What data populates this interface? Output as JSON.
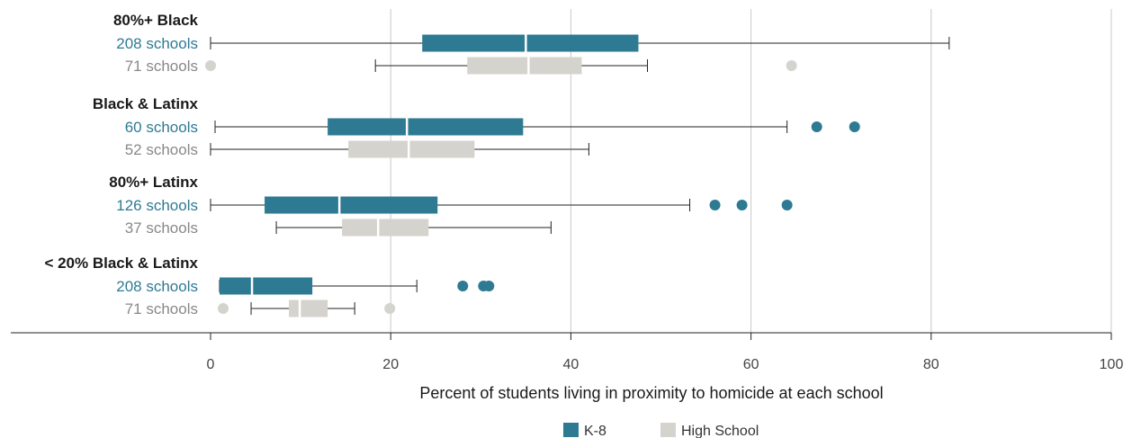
{
  "chart_data": {
    "type": "boxplot",
    "orientation": "horizontal",
    "xlabel": "Percent of students living in proximity to homicide at each school",
    "xlim": [
      0,
      100
    ],
    "xticks": [
      0,
      20,
      40,
      60,
      80,
      100
    ],
    "grid": true,
    "legend": {
      "placement": "bottom-center",
      "items": [
        {
          "name": "K-8",
          "color": "#2e7a93"
        },
        {
          "name": "High School",
          "color": "#d4d3cd"
        }
      ]
    },
    "colors": {
      "k8": "#2e7a93",
      "hs": "#d4d3cd",
      "hs_text": "#888888",
      "whisker": "#222222"
    },
    "groups": [
      {
        "title": "80%+ Black",
        "rows": [
          {
            "series": "K-8",
            "label": "208 schools",
            "min": 0,
            "q1": 23.5,
            "median": 35,
            "q3": 47.5,
            "max": 82,
            "outliers": []
          },
          {
            "series": "High School",
            "label": "71 schools",
            "min": 18.3,
            "q1": 28.5,
            "median": 35.3,
            "q3": 41.2,
            "max": 48.5,
            "outliers": [
              0,
              64.5
            ]
          }
        ]
      },
      {
        "title": "Black & Latinx",
        "rows": [
          {
            "series": "K-8",
            "label": "60 schools",
            "min": 0.5,
            "q1": 13,
            "median": 21.8,
            "q3": 34.7,
            "max": 64,
            "outliers": [
              67.3,
              71.5
            ]
          },
          {
            "series": "High School",
            "label": "52 schools",
            "min": 0,
            "q1": 15.3,
            "median": 22,
            "q3": 29.3,
            "max": 42,
            "outliers": []
          }
        ]
      },
      {
        "title": "80%+ Latinx",
        "rows": [
          {
            "series": "K-8",
            "label": "126 schools",
            "min": 0,
            "q1": 6,
            "median": 14.3,
            "q3": 25.2,
            "max": 53.2,
            "outliers": [
              56,
              59,
              64
            ]
          },
          {
            "series": "High School",
            "label": "37 schools",
            "min": 7.3,
            "q1": 14.6,
            "median": 18.6,
            "q3": 24.2,
            "max": 37.8,
            "outliers": []
          }
        ]
      },
      {
        "title": "< 20% Black & Latinx",
        "rows": [
          {
            "series": "K-8",
            "label": "208 schools",
            "min": 1,
            "q1": 1,
            "median": 4.6,
            "q3": 11.3,
            "max": 22.9,
            "outliers": [
              28,
              30.3,
              30.9
            ]
          },
          {
            "series": "High School",
            "label": "71 schools",
            "min": 4.5,
            "q1": 8.7,
            "median": 9.9,
            "q3": 13,
            "max": 16,
            "outliers": [
              1.4,
              19.9
            ]
          }
        ]
      }
    ]
  }
}
